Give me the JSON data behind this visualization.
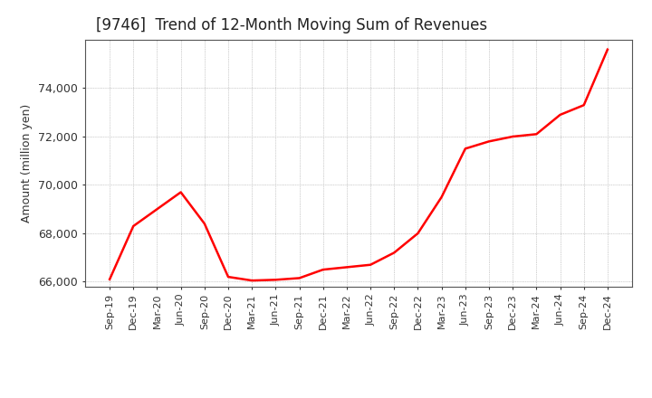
{
  "title": "[9746]  Trend of 12-Month Moving Sum of Revenues",
  "ylabel": "Amount (million yen)",
  "line_color": "#FF0000",
  "line_width": 1.8,
  "background_color": "#FFFFFF",
  "plot_bg_color": "#FFFFFF",
  "grid_color": "#999999",
  "ylim": [
    65800,
    76000
  ],
  "yticks": [
    66000,
    68000,
    70000,
    72000,
    74000
  ],
  "x_labels": [
    "Sep-19",
    "Dec-19",
    "Mar-20",
    "Jun-20",
    "Sep-20",
    "Dec-20",
    "Mar-21",
    "Jun-21",
    "Sep-21",
    "Dec-21",
    "Mar-22",
    "Jun-22",
    "Sep-22",
    "Dec-22",
    "Mar-23",
    "Jun-23",
    "Sep-23",
    "Dec-23",
    "Mar-24",
    "Jun-24",
    "Sep-24",
    "Dec-24"
  ],
  "values": [
    66100,
    68300,
    69000,
    69700,
    68400,
    66200,
    66050,
    66080,
    66150,
    66500,
    66600,
    66700,
    67200,
    68000,
    69500,
    71500,
    71800,
    72000,
    72100,
    72900,
    73300,
    75600
  ],
  "title_fontsize": 12,
  "title_color": "#333333",
  "tick_fontsize": 8,
  "ylabel_fontsize": 9
}
